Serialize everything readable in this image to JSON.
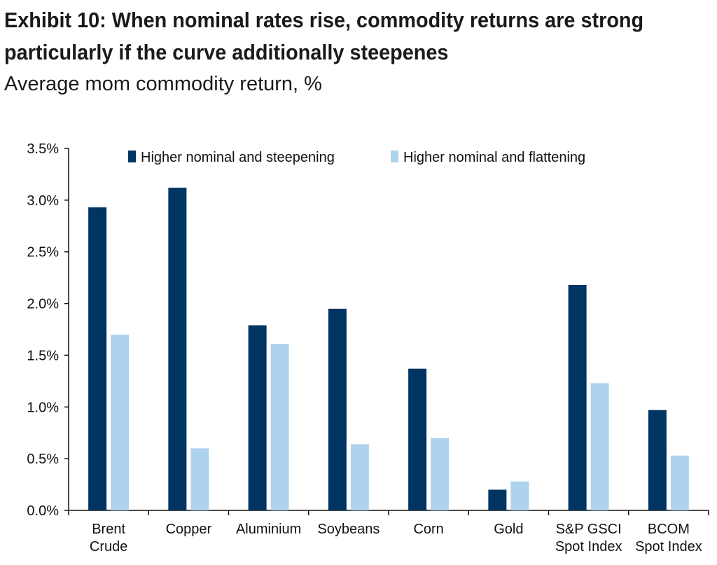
{
  "title_line1": "Exhibit 10: When nominal rates rise, commodity returns are strong",
  "title_line2": "particularly if the curve additionally steepenes",
  "subtitle": "Average mom commodity return, %",
  "chart_data": {
    "type": "bar",
    "categories": [
      [
        "Brent",
        "Crude"
      ],
      [
        "Copper"
      ],
      [
        "Aluminium"
      ],
      [
        "Soybeans"
      ],
      [
        "Corn"
      ],
      [
        "Gold"
      ],
      [
        "S&P GSCI",
        "Spot Index"
      ],
      [
        "BCOM",
        "Spot Index"
      ]
    ],
    "series": [
      {
        "name": "Higher nominal and steepening",
        "color": "#003462",
        "values": [
          2.93,
          3.12,
          1.79,
          1.95,
          1.37,
          0.2,
          2.18,
          0.97
        ]
      },
      {
        "name": "Higher nominal and flattening",
        "color": "#aed3ef",
        "values": [
          1.7,
          0.6,
          1.61,
          0.64,
          0.7,
          0.28,
          1.23,
          0.53
        ]
      }
    ],
    "ylim": [
      0,
      3.5
    ],
    "yticks": [
      "0.0%",
      "0.5%",
      "1.0%",
      "1.5%",
      "2.0%",
      "2.5%",
      "3.0%",
      "3.5%"
    ],
    "ytick_values": [
      0,
      0.5,
      1.0,
      1.5,
      2.0,
      2.5,
      3.0,
      3.5
    ],
    "grid": false,
    "legend_position": "top"
  }
}
